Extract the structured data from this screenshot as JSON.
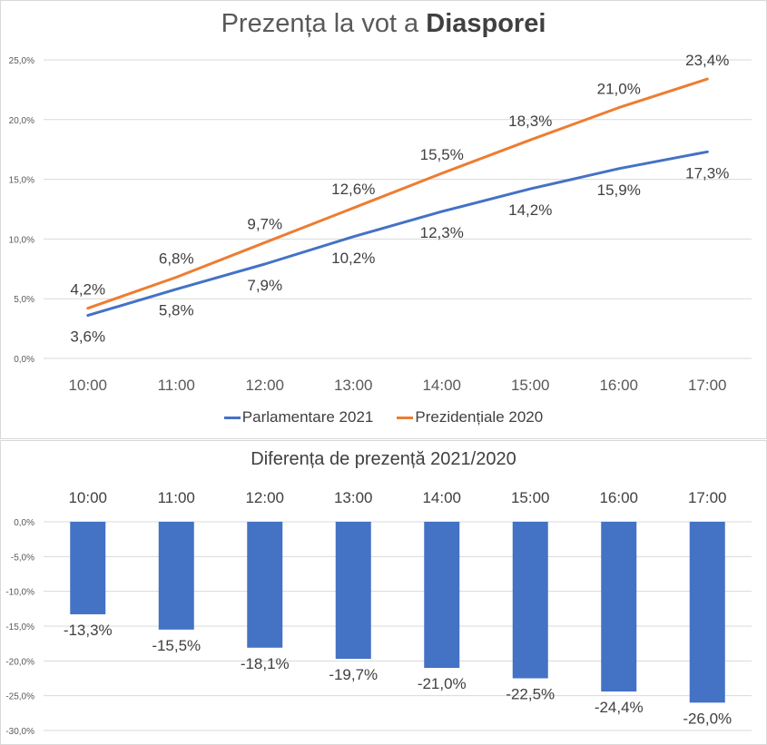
{
  "chart_data": [
    {
      "type": "line",
      "title_prefix": "Prezența la vot a ",
      "title_bold": "Diasporei",
      "xlabel": "",
      "ylabel": "",
      "categories": [
        "10:00",
        "11:00",
        "12:00",
        "13:00",
        "14:00",
        "15:00",
        "16:00",
        "17:00"
      ],
      "ylim": [
        0,
        25
      ],
      "yticks": [
        0,
        5,
        10,
        15,
        20,
        25
      ],
      "ytick_labels": [
        "0,0%",
        "5,0%",
        "10,0%",
        "15,0%",
        "20,0%",
        "25,0%"
      ],
      "grid": true,
      "legend_position": "bottom",
      "series": [
        {
          "name": "Parlamentare 2021",
          "color": "#4472c4",
          "values": [
            3.6,
            5.8,
            7.9,
            10.2,
            12.3,
            14.2,
            15.9,
            17.3
          ],
          "labels": [
            "3,6%",
            "5,8%",
            "7,9%",
            "10,2%",
            "12,3%",
            "14,2%",
            "15,9%",
            "17,3%"
          ],
          "label_position": "below"
        },
        {
          "name": "Prezidențiale 2020",
          "color": "#ed7d31",
          "values": [
            4.2,
            6.8,
            9.7,
            12.6,
            15.5,
            18.3,
            21.0,
            23.4
          ],
          "labels": [
            "4,2%",
            "6,8%",
            "9,7%",
            "12,6%",
            "15,5%",
            "18,3%",
            "21,0%",
            "23,4%"
          ],
          "label_position": "above"
        }
      ]
    },
    {
      "type": "bar",
      "title": "Diferența de prezență 2021/2020",
      "xlabel": "",
      "ylabel": "",
      "categories": [
        "10:00",
        "11:00",
        "12:00",
        "13:00",
        "14:00",
        "15:00",
        "16:00",
        "17:00"
      ],
      "ylim": [
        -30,
        0
      ],
      "yticks": [
        0,
        -5,
        -10,
        -15,
        -20,
        -25,
        -30
      ],
      "ytick_labels": [
        "0,0%",
        "-5,0%",
        "-10,0%",
        "-15,0%",
        "-20,0%",
        "-25,0%",
        "-30,0%"
      ],
      "grid": true,
      "series": [
        {
          "name": "Diferența",
          "color": "#4472c4",
          "values": [
            -13.3,
            -15.5,
            -18.1,
            -19.7,
            -21.0,
            -22.5,
            -24.4,
            -26.0
          ],
          "labels": [
            "-13,3%",
            "-15,5%",
            "-18,1%",
            "-19,7%",
            "-21,0%",
            "-22,5%",
            "-24,4%",
            "-26,0%"
          ]
        }
      ]
    }
  ]
}
